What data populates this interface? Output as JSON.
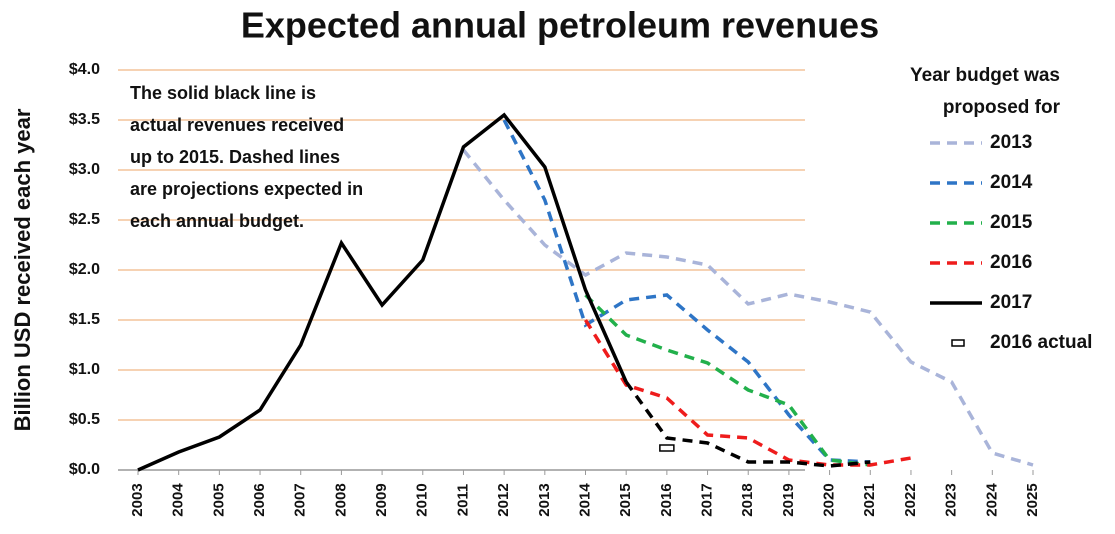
{
  "chart_data": {
    "type": "line",
    "title": "Expected annual petroleum revenues",
    "y_label": "Billion USD received each year",
    "annotation": [
      "The solid black line is",
      "actual revenues received",
      "up to 2015. Dashed lines",
      "are projections expected in",
      "each annual budget."
    ],
    "legend_title": [
      "Year budget was",
      "proposed for"
    ],
    "legend": "right",
    "grid": true,
    "x": [
      2003,
      2004,
      2005,
      2006,
      2007,
      2008,
      2009,
      2010,
      2011,
      2012,
      2013,
      2014,
      2015,
      2016,
      2017,
      2018,
      2019,
      2020,
      2021,
      2022,
      2023,
      2024,
      2025
    ],
    "xlim": [
      2003,
      2025
    ],
    "xticks": [
      2003,
      2004,
      2005,
      2006,
      2007,
      2008,
      2009,
      2010,
      2011,
      2012,
      2013,
      2014,
      2015,
      2016,
      2017,
      2018,
      2019,
      2020,
      2021,
      2022,
      2023,
      2024,
      2025
    ],
    "ylim": [
      0,
      4
    ],
    "yticks": [
      {
        "value": 0,
        "label": "$0.0"
      },
      {
        "value": 0.5,
        "label": "$0.5"
      },
      {
        "value": 1,
        "label": "$1.0"
      },
      {
        "value": 1.5,
        "label": "$1.5"
      },
      {
        "value": 2,
        "label": "$2.0"
      },
      {
        "value": 2.5,
        "label": "$2.5"
      },
      {
        "value": 3,
        "label": "$3.0"
      },
      {
        "value": 3.5,
        "label": "$3.5"
      },
      {
        "value": 4,
        "label": "$4.0"
      }
    ],
    "series": [
      {
        "name": "2013",
        "color": "#a9b4d9",
        "style": "dashed",
        "values": [
          null,
          null,
          null,
          null,
          null,
          null,
          null,
          null,
          3.2,
          2.7,
          2.25,
          1.95,
          2.17,
          2.13,
          2.05,
          1.66,
          1.76,
          1.68,
          1.58,
          1.08,
          0.88,
          0.17,
          0.05
        ]
      },
      {
        "name": "2014",
        "color": "#2e75c6",
        "style": "dashed",
        "values": [
          null,
          null,
          null,
          null,
          null,
          null,
          null,
          null,
          null,
          3.5,
          2.7,
          1.45,
          1.7,
          1.75,
          1.4,
          1.08,
          0.55,
          0.1,
          0.08,
          null,
          null,
          null,
          null
        ]
      },
      {
        "name": "2015",
        "color": "#22b04b",
        "style": "dashed",
        "values": [
          null,
          null,
          null,
          null,
          null,
          null,
          null,
          null,
          null,
          null,
          null,
          1.75,
          1.35,
          1.2,
          1.07,
          0.8,
          0.65,
          0.1,
          0.05,
          null,
          null,
          null,
          null
        ]
      },
      {
        "name": "2016",
        "color": "#ee1c1c",
        "style": "dashed",
        "values": [
          null,
          null,
          null,
          null,
          null,
          null,
          null,
          null,
          null,
          null,
          null,
          1.5,
          0.85,
          0.72,
          0.35,
          0.32,
          0.1,
          0.05,
          0.05,
          0.12,
          null,
          null,
          null
        ]
      },
      {
        "name": "2017",
        "color": "#000000",
        "style": "solid",
        "dashed_from_x": 2015,
        "values": [
          0,
          0.18,
          0.33,
          0.6,
          1.25,
          2.27,
          1.65,
          2.1,
          3.23,
          3.55,
          3.03,
          1.8,
          0.88,
          0.32,
          0.27,
          0.08,
          0.08,
          0.04,
          0.08,
          null,
          null,
          null,
          null
        ]
      },
      {
        "name": "2016 actual",
        "color": "#000000",
        "style": "marker",
        "values": [
          null,
          null,
          null,
          null,
          null,
          null,
          null,
          null,
          null,
          null,
          null,
          null,
          null,
          0.22,
          null,
          null,
          null,
          null,
          null,
          null,
          null,
          null,
          null
        ]
      }
    ]
  }
}
